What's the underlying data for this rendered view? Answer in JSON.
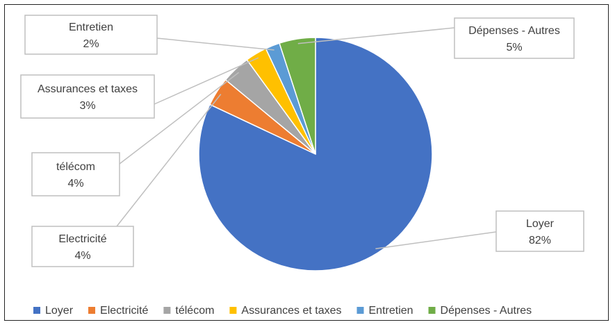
{
  "chart_data": {
    "type": "pie",
    "title": "",
    "categories": [
      "Loyer",
      "Electricité",
      "télécom",
      "Assurances et taxes",
      "Entretien",
      "Dépenses - Autres"
    ],
    "values": [
      82,
      4,
      4,
      3,
      2,
      5
    ],
    "data_labels": [
      "82%",
      "4%",
      "4%",
      "3%",
      "2%",
      "5%"
    ],
    "colors": [
      "#4472C4",
      "#ED7D31",
      "#A5A5A5",
      "#FFC000",
      "#5B9BD5",
      "#70AD47"
    ],
    "start_angle_deg": 0,
    "direction": "clockwise",
    "legend_position": "bottom"
  }
}
